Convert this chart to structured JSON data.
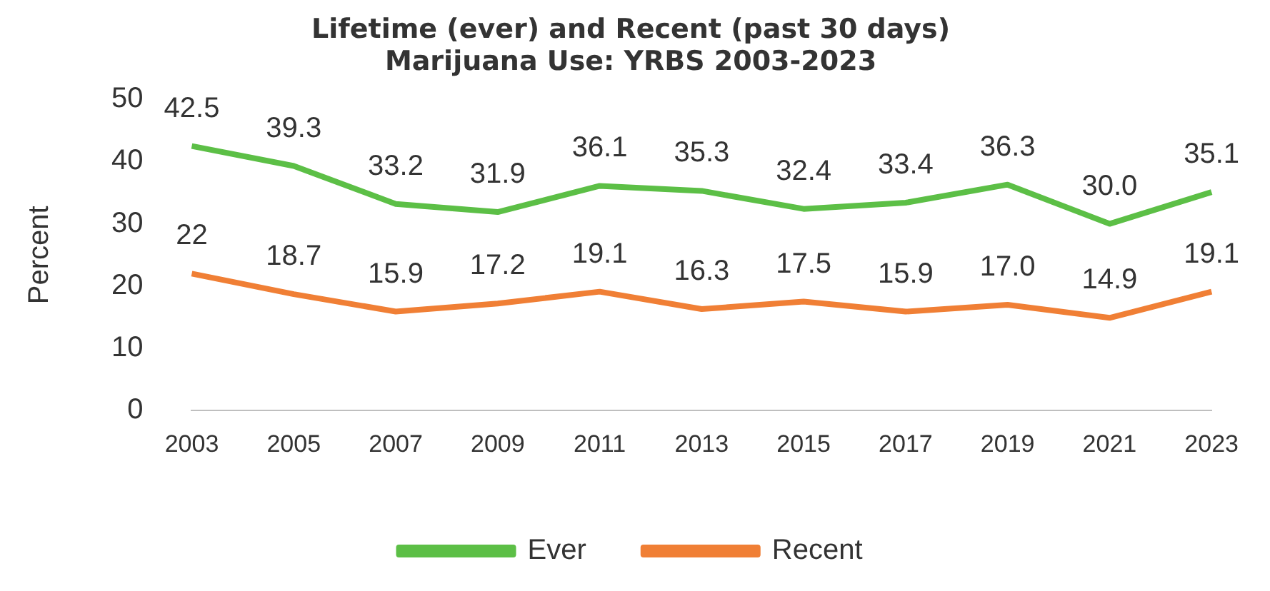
{
  "chart_data": {
    "type": "line",
    "title": "Lifetime (ever) and Recent (past 30 days)\nMarijuana Use: YRBS 2003-2023",
    "ylabel": "Percent",
    "categories": [
      "2003",
      "2005",
      "2007",
      "2009",
      "2011",
      "2013",
      "2015",
      "2017",
      "2019",
      "2021",
      "2023"
    ],
    "series": [
      {
        "name": "Ever",
        "color": "#5cbf46",
        "values": [
          42.5,
          39.3,
          33.2,
          31.9,
          36.1,
          35.3,
          32.4,
          33.4,
          36.3,
          30.0,
          35.1
        ],
        "value_labels": [
          "42.5",
          "39.3",
          "33.2",
          "31.9",
          "36.1",
          "35.3",
          "32.4",
          "33.4",
          "36.3",
          "30.0",
          "35.1"
        ]
      },
      {
        "name": "Recent",
        "color": "#f07f35",
        "values": [
          22,
          18.7,
          15.9,
          17.2,
          19.1,
          16.3,
          17.5,
          15.9,
          17.0,
          14.9,
          19.1
        ],
        "value_labels": [
          "22",
          "18.7",
          "15.9",
          "17.2",
          "19.1",
          "16.3",
          "17.5",
          "15.9",
          "17.0",
          "14.9",
          "19.1"
        ]
      }
    ],
    "ylim": [
      0,
      50
    ],
    "yticks": [
      0,
      10,
      20,
      30,
      40,
      50
    ],
    "grid": false,
    "legend": "bottom",
    "marker": "none",
    "line_style": "solid"
  }
}
